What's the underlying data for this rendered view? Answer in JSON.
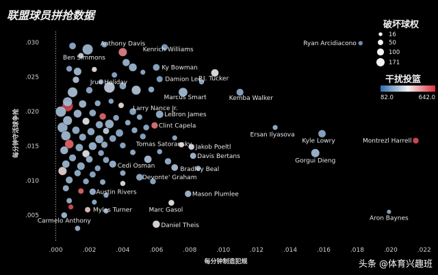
{
  "chart_data": {
    "type": "scatter",
    "title": "联盟球员拼抢数据",
    "xlabel": "每分钟制造犯规",
    "ylabel": "每分钟守活球争抢",
    "xlim": [
      -0.0008,
      0.0225
    ],
    "ylim": [
      0.0013,
      0.0312
    ],
    "x_ticks": [
      ".000",
      ".002",
      ".004",
      ".006",
      ".008",
      ".010",
      ".012",
      ".014",
      ".016",
      ".018",
      ".020",
      ".022"
    ],
    "y_ticks": [
      ".005",
      ".010",
      ".015",
      ".020",
      ".025",
      ".030"
    ],
    "grid": false,
    "reference_line_x": 0.0,
    "size_legend": {
      "title": "破坏球权",
      "values": [
        "16",
        "50",
        "100",
        "171"
      ]
    },
    "color_legend": {
      "title": "干扰投篮",
      "min": "82.0",
      "max": "642.0",
      "low_color": "#2f6fb0",
      "mid_color": "#f0f0f0",
      "high_color": "#e0303a"
    },
    "labeled_points": [
      {
        "name": "Ryan Arcidiacono",
        "x": 0.0182,
        "y": 0.0299,
        "size": 12,
        "contest": 180
      },
      {
        "name": "Anthony Davis",
        "x": 0.004,
        "y": 0.0286,
        "size": 80,
        "contest": 520
      },
      {
        "name": "Kenrich Williams",
        "x": 0.0065,
        "y": 0.0293,
        "size": 40,
        "contest": 200
      },
      {
        "name": "Ben Simmons",
        "x": 0.0019,
        "y": 0.029,
        "size": 140,
        "contest": 250
      },
      {
        "name": "Ky Bowman",
        "x": 0.006,
        "y": 0.0264,
        "size": 45,
        "contest": 230
      },
      {
        "name": "Damion Lee",
        "x": 0.0062,
        "y": 0.0247,
        "size": 35,
        "contest": 210
      },
      {
        "name": "P.J. Tucker",
        "x": 0.0095,
        "y": 0.0256,
        "size": 60,
        "contest": 370
      },
      {
        "name": "Jrue Holiday",
        "x": 0.0032,
        "y": 0.0235,
        "size": 150,
        "contest": 300
      },
      {
        "name": "Marcus Smart",
        "x": 0.0076,
        "y": 0.0228,
        "size": 95,
        "contest": 260
      },
      {
        "name": "Kemba Walker",
        "x": 0.011,
        "y": 0.0228,
        "size": 50,
        "contest": 220
      },
      {
        "name": "Larry Nance Jr.",
        "x": 0.0046,
        "y": 0.02,
        "size": 45,
        "contest": 230
      },
      {
        "name": "LeBron James",
        "x": 0.0062,
        "y": 0.0196,
        "size": 60,
        "contest": 240
      },
      {
        "name": "Clint Capela",
        "x": 0.0059,
        "y": 0.018,
        "size": 40,
        "contest": 540
      },
      {
        "name": "Ersan Ilyasova",
        "x": 0.0131,
        "y": 0.0177,
        "size": 18,
        "contest": 240
      },
      {
        "name": "Kyle Lowry",
        "x": 0.0159,
        "y": 0.0168,
        "size": 60,
        "contest": 230
      },
      {
        "name": "Montrezl Harrell",
        "x": 0.0215,
        "y": 0.0158,
        "size": 30,
        "contest": 600
      },
      {
        "name": "Tomas Satoransky",
        "x": 0.0052,
        "y": 0.0164,
        "size": 30,
        "contest": 220
      },
      {
        "name": "Jakob Poeltl",
        "x": 0.0081,
        "y": 0.0149,
        "size": 30,
        "contest": 340
      },
      {
        "name": "Gorgui Dieng",
        "x": 0.0155,
        "y": 0.014,
        "size": 80,
        "contest": 260
      },
      {
        "name": "Davis Bertans",
        "x": 0.0082,
        "y": 0.0136,
        "size": 35,
        "contest": 260
      },
      {
        "name": "Cedi Osman",
        "x": 0.0034,
        "y": 0.0124,
        "size": 50,
        "contest": 250
      },
      {
        "name": "Bradley Beal",
        "x": 0.0071,
        "y": 0.0119,
        "size": 45,
        "contest": 270
      },
      {
        "name": "Devonte' Graham",
        "x": 0.005,
        "y": 0.0105,
        "size": 45,
        "contest": 230
      },
      {
        "name": "Austin Rivers",
        "x": 0.0022,
        "y": 0.0084,
        "size": 40,
        "contest": 240
      },
      {
        "name": "Mason Plumlee",
        "x": 0.0079,
        "y": 0.0081,
        "size": 40,
        "contest": 260
      },
      {
        "name": "Myles Turner",
        "x": 0.0019,
        "y": 0.0058,
        "size": 25,
        "contest": 420
      },
      {
        "name": "Marc Gasol",
        "x": 0.0069,
        "y": 0.0068,
        "size": 30,
        "contest": 370
      },
      {
        "name": "Carmelo Anthony",
        "x": 0.0005,
        "y": 0.005,
        "size": 30,
        "contest": 260
      },
      {
        "name": "Daniel Theis",
        "x": 0.006,
        "y": 0.0037,
        "size": 55,
        "contest": 380
      },
      {
        "name": "Aron Baynes",
        "x": 0.0199,
        "y": 0.0055,
        "size": 10,
        "contest": 220
      }
    ],
    "other_points": [
      {
        "x": 0.001,
        "y": 0.0295,
        "size": 45,
        "contest": 230
      },
      {
        "x": 0.0029,
        "y": 0.0297,
        "size": 30,
        "contest": 210
      },
      {
        "x": 0.0015,
        "y": 0.0281,
        "size": 25,
        "contest": 300
      },
      {
        "x": 0.0042,
        "y": 0.0271,
        "size": 55,
        "contest": 250
      },
      {
        "x": 0.0046,
        "y": 0.0264,
        "size": 70,
        "contest": 250
      },
      {
        "x": 0.0008,
        "y": 0.0262,
        "size": 30,
        "contest": 220
      },
      {
        "x": 0.0013,
        "y": 0.0258,
        "size": 65,
        "contest": 260
      },
      {
        "x": 0.0023,
        "y": 0.0261,
        "size": 20,
        "contest": 380
      },
      {
        "x": 0.0052,
        "y": 0.0257,
        "size": 18,
        "contest": 230
      },
      {
        "x": 0.0035,
        "y": 0.0253,
        "size": 25,
        "contest": 220
      },
      {
        "x": 0.0012,
        "y": 0.0246,
        "size": 40,
        "contest": 280
      },
      {
        "x": 0.0027,
        "y": 0.0243,
        "size": 20,
        "contest": 230
      },
      {
        "x": 0.004,
        "y": 0.0237,
        "size": 45,
        "contest": 230
      },
      {
        "x": 0.0048,
        "y": 0.0231,
        "size": 100,
        "contest": 280
      },
      {
        "x": 0.0057,
        "y": 0.0232,
        "size": 30,
        "contest": 240
      },
      {
        "x": 0.0087,
        "y": 0.0243,
        "size": 20,
        "contest": 230
      },
      {
        "x": 0.001,
        "y": 0.0228,
        "size": 120,
        "contest": 270
      },
      {
        "x": 0.002,
        "y": 0.0231,
        "size": 40,
        "contest": 230
      },
      {
        "x": 0.0007,
        "y": 0.0214,
        "size": 110,
        "contest": 250
      },
      {
        "x": 0.0007,
        "y": 0.0208,
        "size": 150,
        "contest": 610
      },
      {
        "x": 0.0016,
        "y": 0.0211,
        "size": 60,
        "contest": 260
      },
      {
        "x": 0.0025,
        "y": 0.0212,
        "size": 30,
        "contest": 240
      },
      {
        "x": 0.0033,
        "y": 0.0215,
        "size": 20,
        "contest": 230
      },
      {
        "x": 0.0039,
        "y": 0.0209,
        "size": 25,
        "contest": 380
      },
      {
        "x": 0.0003,
        "y": 0.02,
        "size": 140,
        "contest": 260
      },
      {
        "x": 0.0013,
        "y": 0.0197,
        "size": 70,
        "contest": 260
      },
      {
        "x": 0.0022,
        "y": 0.0198,
        "size": 45,
        "contest": 240
      },
      {
        "x": 0.0028,
        "y": 0.0193,
        "size": 40,
        "contest": 560
      },
      {
        "x": 0.0036,
        "y": 0.0191,
        "size": 30,
        "contest": 230
      },
      {
        "x": 0.005,
        "y": 0.0192,
        "size": 25,
        "contest": 240
      },
      {
        "x": 0.0007,
        "y": 0.0187,
        "size": 100,
        "contest": 260
      },
      {
        "x": 0.0018,
        "y": 0.0186,
        "size": 50,
        "contest": 350
      },
      {
        "x": 0.0026,
        "y": 0.0181,
        "size": 55,
        "contest": 240
      },
      {
        "x": 0.0032,
        "y": 0.0182,
        "size": 90,
        "contest": 250
      },
      {
        "x": 0.0043,
        "y": 0.0184,
        "size": 25,
        "contest": 240
      },
      {
        "x": 0.0054,
        "y": 0.0177,
        "size": 30,
        "contest": 230
      },
      {
        "x": 0.0004,
        "y": 0.0177,
        "size": 130,
        "contest": 250
      },
      {
        "x": 0.0012,
        "y": 0.0173,
        "size": 60,
        "contest": 240
      },
      {
        "x": 0.0021,
        "y": 0.0171,
        "size": 55,
        "contest": 240
      },
      {
        "x": 0.003,
        "y": 0.0172,
        "size": 35,
        "contest": 300
      },
      {
        "x": 0.0038,
        "y": 0.0169,
        "size": 60,
        "contest": 230
      },
      {
        "x": 0.0047,
        "y": 0.0173,
        "size": 30,
        "contest": 240
      },
      {
        "x": 0.0006,
        "y": 0.0165,
        "size": 110,
        "contest": 260
      },
      {
        "x": 0.0016,
        "y": 0.0163,
        "size": 50,
        "contest": 240
      },
      {
        "x": 0.0026,
        "y": 0.016,
        "size": 75,
        "contest": 250
      },
      {
        "x": 0.0034,
        "y": 0.0161,
        "size": 45,
        "contest": 230
      },
      {
        "x": 0.0071,
        "y": 0.0162,
        "size": 18,
        "contest": 230
      },
      {
        "x": 0.0008,
        "y": 0.0153,
        "size": 90,
        "contest": 560
      },
      {
        "x": 0.0014,
        "y": 0.0148,
        "size": 60,
        "contest": 240
      },
      {
        "x": 0.0022,
        "y": 0.015,
        "size": 70,
        "contest": 250
      },
      {
        "x": 0.0029,
        "y": 0.0152,
        "size": 40,
        "contest": 240
      },
      {
        "x": 0.004,
        "y": 0.0151,
        "size": 30,
        "contest": 230
      },
      {
        "x": 0.0075,
        "y": 0.0152,
        "size": 22,
        "contest": 380
      },
      {
        "x": 0.0005,
        "y": 0.0144,
        "size": 70,
        "contest": 260
      },
      {
        "x": 0.0018,
        "y": 0.0139,
        "size": 55,
        "contest": 350
      },
      {
        "x": 0.0027,
        "y": 0.014,
        "size": 30,
        "contest": 230
      },
      {
        "x": 0.0046,
        "y": 0.0141,
        "size": 25,
        "contest": 240
      },
      {
        "x": 0.0062,
        "y": 0.0142,
        "size": 20,
        "contest": 230
      },
      {
        "x": 0.001,
        "y": 0.0133,
        "size": 50,
        "contest": 240
      },
      {
        "x": 0.002,
        "y": 0.0131,
        "size": 45,
        "contest": 250
      },
      {
        "x": 0.003,
        "y": 0.013,
        "size": 35,
        "contest": 230
      },
      {
        "x": 0.0055,
        "y": 0.0131,
        "size": 60,
        "contest": 270
      },
      {
        "x": 0.0067,
        "y": 0.0128,
        "size": 40,
        "contest": 240
      },
      {
        "x": 0.0006,
        "y": 0.0124,
        "size": 60,
        "contest": 250
      },
      {
        "x": 0.0015,
        "y": 0.0121,
        "size": 65,
        "contest": 240
      },
      {
        "x": 0.0025,
        "y": 0.0118,
        "size": 30,
        "contest": 230
      },
      {
        "x": 0.0004,
        "y": 0.0114,
        "size": 80,
        "contest": 400
      },
      {
        "x": 0.0013,
        "y": 0.0111,
        "size": 40,
        "contest": 240
      },
      {
        "x": 0.0022,
        "y": 0.0109,
        "size": 35,
        "contest": 230
      },
      {
        "x": 0.004,
        "y": 0.0111,
        "size": 25,
        "contest": 240
      },
      {
        "x": 0.0085,
        "y": 0.0118,
        "size": 20,
        "contest": 230
      },
      {
        "x": 0.0008,
        "y": 0.0101,
        "size": 50,
        "contest": 240
      },
      {
        "x": 0.0018,
        "y": 0.0099,
        "size": 30,
        "contest": 230
      },
      {
        "x": 0.0028,
        "y": 0.0098,
        "size": 25,
        "contest": 240
      },
      {
        "x": 0.004,
        "y": 0.0096,
        "size": 20,
        "contest": 380
      },
      {
        "x": 0.0058,
        "y": 0.0099,
        "size": 30,
        "contest": 230
      },
      {
        "x": 0.0006,
        "y": 0.0089,
        "size": 35,
        "contest": 240
      },
      {
        "x": 0.0015,
        "y": 0.0085,
        "size": 25,
        "contest": 560
      },
      {
        "x": 0.003,
        "y": 0.0079,
        "size": 20,
        "contest": 230
      },
      {
        "x": 0.0008,
        "y": 0.0071,
        "size": 25,
        "contest": 240
      },
      {
        "x": 0.0023,
        "y": 0.0069,
        "size": 18,
        "contest": 230
      },
      {
        "x": 0.0009,
        "y": 0.0062,
        "size": 18,
        "contest": 600
      },
      {
        "x": 0.003,
        "y": 0.0056,
        "size": 18,
        "contest": 240
      },
      {
        "x": 0.0013,
        "y": 0.0031,
        "size": 22,
        "contest": 240
      }
    ]
  },
  "watermark": "头条 @体育兴趣班"
}
